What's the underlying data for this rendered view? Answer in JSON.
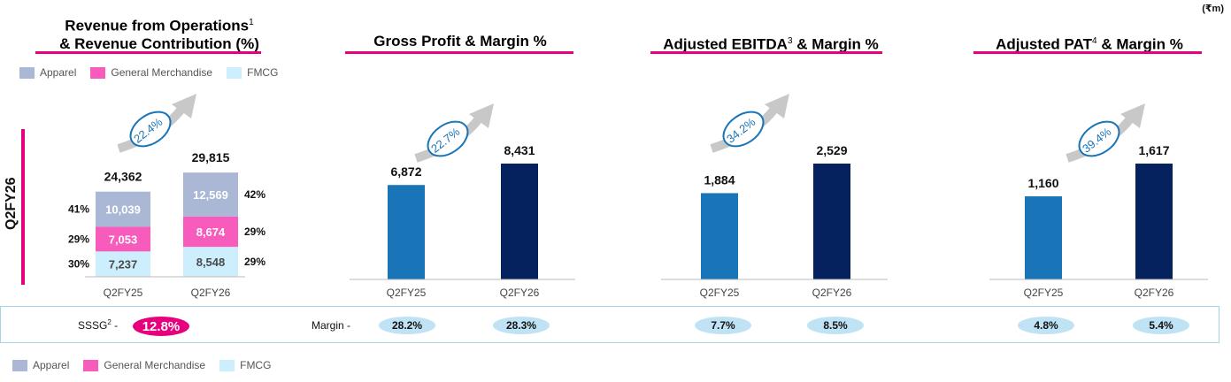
{
  "currency_label": "(₹m)",
  "period_label": "Q2FY26",
  "panels": {
    "revenue": {
      "title_line1": "Revenue from Operations",
      "title_line1_sup": "1",
      "title_line2": "& Revenue Contribution (%)"
    },
    "gross": {
      "title": "Gross Profit & Margin %"
    },
    "ebitda": {
      "title_pre": "Adjusted EBITDA",
      "sup": "3",
      "title_post": " & Margin %"
    },
    "pat": {
      "title_pre": "Adjusted PAT",
      "sup": "4",
      "title_post": " & Margin %"
    }
  },
  "legend": {
    "items": [
      {
        "label": "Apparel",
        "color": "#aab8d6"
      },
      {
        "label": "General Merchandise",
        "color": "#f75cbc"
      },
      {
        "label": "FMCG",
        "color": "#cdeefd"
      }
    ]
  },
  "sssg": {
    "label": "SSSG",
    "sup": "2",
    "dash": "-",
    "value": "12.8%"
  },
  "margin_label": "Margin -",
  "chart_data": [
    {
      "type": "bar",
      "stacked": true,
      "categories": [
        "Q2FY25",
        "Q2FY26"
      ],
      "series": [
        {
          "name": "FMCG",
          "values": [
            7237,
            8548
          ],
          "labels": [
            "7,237",
            "8,548"
          ],
          "shares": [
            "30%",
            "29%"
          ],
          "color": "#cdeefd",
          "text_color": "#4a4a4a"
        },
        {
          "name": "General Merchandise",
          "values": [
            7053,
            8674
          ],
          "labels": [
            "7,053",
            "8,674"
          ],
          "shares": [
            "29%",
            "29%"
          ],
          "color": "#f75cbc",
          "text_color": "#ffffff"
        },
        {
          "name": "Apparel",
          "values": [
            10039,
            12569
          ],
          "labels": [
            "10,039",
            "12,569"
          ],
          "shares": [
            "41%",
            "42%"
          ],
          "color": "#aab8d6",
          "text_color": "#ffffff"
        }
      ],
      "totals": [
        "24,362",
        "29,815"
      ],
      "growth": "22.4%"
    },
    {
      "type": "bar",
      "categories": [
        "Q2FY25",
        "Q2FY26"
      ],
      "values": [
        6872,
        8431
      ],
      "value_labels": [
        "6,872",
        "8,431"
      ],
      "colors": [
        "#1a75b8",
        "#05215e"
      ],
      "growth": "22.7%",
      "margins": [
        "28.2%",
        "28.3%"
      ]
    },
    {
      "type": "bar",
      "categories": [
        "Q2FY25",
        "Q2FY26"
      ],
      "values": [
        1884,
        2529
      ],
      "value_labels": [
        "1,884",
        "2,529"
      ],
      "colors": [
        "#1a75b8",
        "#05215e"
      ],
      "growth": "34.2%",
      "margins": [
        "7.7%",
        "8.5%"
      ]
    },
    {
      "type": "bar",
      "categories": [
        "Q2FY25",
        "Q2FY26"
      ],
      "values": [
        1160,
        1617
      ],
      "value_labels": [
        "1,160",
        "1,617"
      ],
      "colors": [
        "#1a75b8",
        "#05215e"
      ],
      "growth": "39.4%",
      "margins": [
        "4.8%",
        "5.4%"
      ]
    }
  ]
}
